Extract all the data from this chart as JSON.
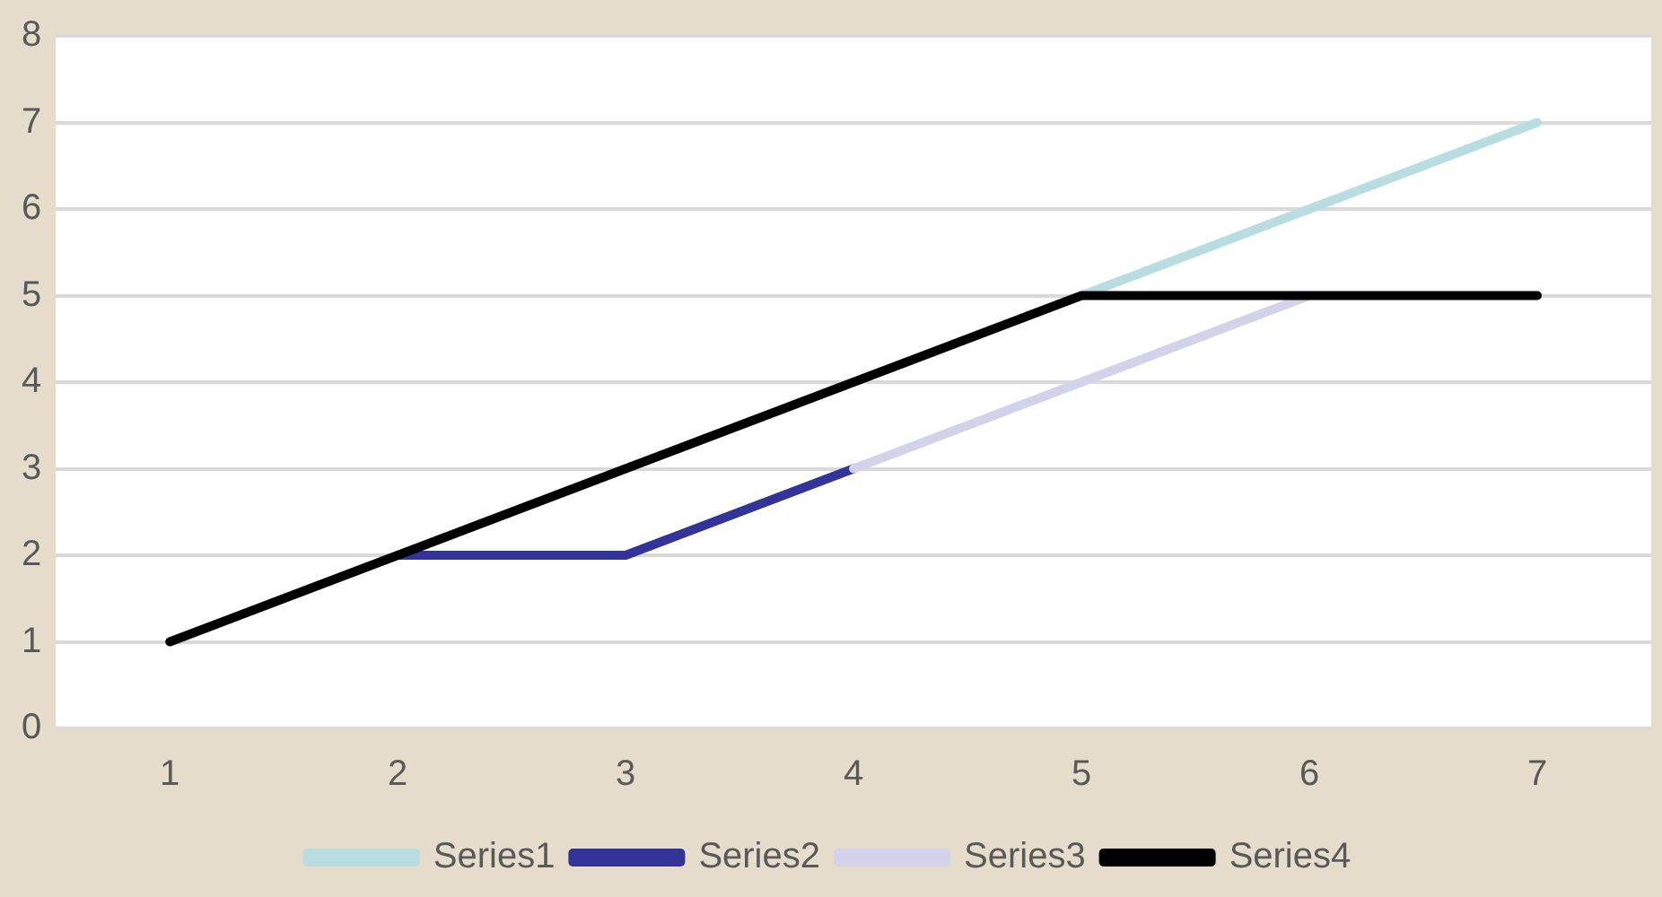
{
  "chart_data": {
    "type": "line",
    "categories": [
      "1",
      "2",
      "3",
      "4",
      "5",
      "6",
      "7"
    ],
    "series": [
      {
        "name": "Series1",
        "color": "#b7dde0",
        "values": [
          null,
          null,
          null,
          null,
          5,
          6,
          7
        ]
      },
      {
        "name": "Series2",
        "color": "#333399",
        "values": [
          null,
          2,
          2,
          3,
          null,
          null,
          null
        ]
      },
      {
        "name": "Series3",
        "color": "#d2d2ea",
        "values": [
          null,
          null,
          null,
          3,
          4,
          5,
          null
        ]
      },
      {
        "name": "Series4",
        "color": "#000000",
        "values": [
          1,
          2,
          3,
          4,
          5,
          5,
          5
        ]
      }
    ],
    "ylim": [
      0,
      8
    ],
    "yticks": [
      0,
      1,
      2,
      3,
      4,
      5,
      6,
      7,
      8
    ],
    "grid": "y",
    "legend": "bottom",
    "marker": "none",
    "line_style": "solid"
  }
}
